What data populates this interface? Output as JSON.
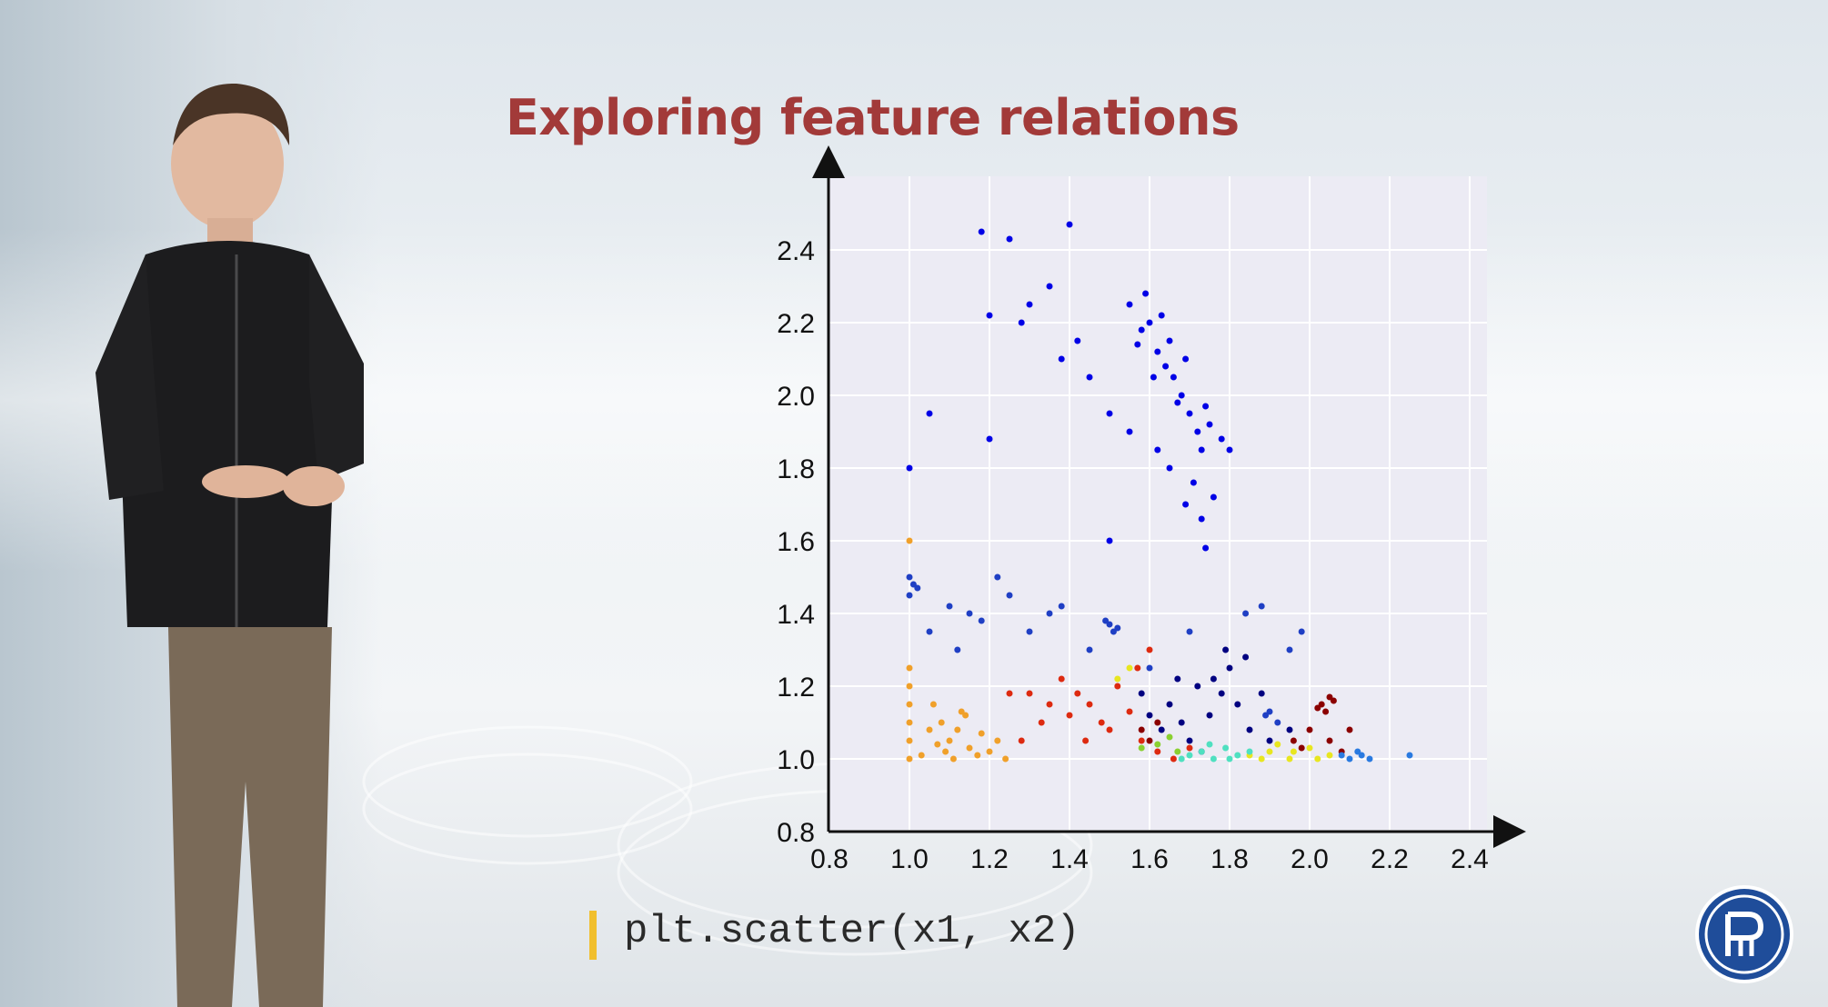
{
  "slide": {
    "title": "Exploring feature relations",
    "code": "plt.scatter(x1, x2)"
  },
  "colors": {
    "title": "#a23a39",
    "accent_bar": "#f1bf2d",
    "logo": "#1f4d9a"
  },
  "icons": {
    "logo": "university-logo-icon"
  },
  "chart_data": {
    "type": "scatter",
    "title": "",
    "xlabel": "",
    "ylabel": "",
    "xlim": [
      0.8,
      2.4
    ],
    "ylim": [
      0.8,
      2.5
    ],
    "x_ticks": [
      0.8,
      1.0,
      1.2,
      1.4,
      1.6,
      1.8,
      2.0,
      2.2,
      2.4
    ],
    "y_ticks": [
      0.8,
      1.0,
      1.2,
      1.4,
      1.6,
      1.8,
      2.0,
      2.2,
      2.4
    ],
    "x_tick_labels": [
      "0.8",
      "1.0",
      "1.2",
      "1.4",
      "1.6",
      "1.8",
      "2.0",
      "2.2",
      "2.4"
    ],
    "y_tick_labels": [
      "0.8",
      "1.0",
      "1.2",
      "1.4",
      "1.6",
      "1.8",
      "2.0",
      "2.2",
      "2.4"
    ],
    "grid": true,
    "series": [
      {
        "color": "#0000e6",
        "points": [
          [
            1.55,
            2.25
          ],
          [
            1.58,
            2.18
          ],
          [
            1.62,
            2.12
          ],
          [
            1.64,
            2.08
          ],
          [
            1.66,
            2.05
          ],
          [
            1.6,
            2.2
          ],
          [
            1.68,
            2.0
          ],
          [
            1.7,
            1.95
          ],
          [
            1.72,
            1.9
          ],
          [
            1.75,
            1.92
          ],
          [
            1.65,
            2.15
          ],
          [
            1.63,
            2.22
          ],
          [
            1.59,
            2.28
          ],
          [
            1.67,
            1.98
          ],
          [
            1.73,
            1.85
          ],
          [
            1.78,
            1.88
          ],
          [
            1.61,
            2.05
          ],
          [
            1.69,
            2.1
          ],
          [
            1.57,
            2.14
          ],
          [
            1.74,
            1.97
          ],
          [
            1.71,
            1.76
          ],
          [
            1.69,
            1.7
          ],
          [
            1.73,
            1.66
          ],
          [
            1.76,
            1.72
          ],
          [
            1.65,
            1.8
          ],
          [
            1.62,
            1.85
          ],
          [
            1.55,
            1.9
          ],
          [
            1.5,
            1.95
          ],
          [
            1.45,
            2.05
          ],
          [
            1.42,
            2.15
          ],
          [
            1.38,
            2.1
          ],
          [
            1.35,
            2.3
          ],
          [
            1.3,
            2.25
          ],
          [
            1.28,
            2.2
          ],
          [
            1.2,
            2.22
          ],
          [
            1.18,
            2.45
          ],
          [
            1.25,
            2.43
          ],
          [
            1.4,
            2.47
          ],
          [
            1.05,
            1.95
          ],
          [
            1.0,
            1.8
          ],
          [
            1.2,
            1.88
          ],
          [
            1.5,
            1.6
          ],
          [
            1.74,
            1.58
          ],
          [
            1.8,
            1.85
          ]
        ]
      },
      {
        "color": "#1f3fc4",
        "points": [
          [
            1.0,
            1.5
          ],
          [
            1.0,
            1.45
          ],
          [
            1.01,
            1.48
          ],
          [
            1.02,
            1.47
          ],
          [
            1.1,
            1.42
          ],
          [
            1.15,
            1.4
          ],
          [
            1.18,
            1.38
          ],
          [
            1.05,
            1.35
          ],
          [
            1.12,
            1.3
          ],
          [
            1.25,
            1.45
          ],
          [
            1.3,
            1.35
          ],
          [
            1.35,
            1.4
          ],
          [
            1.5,
            1.37
          ],
          [
            1.51,
            1.35
          ],
          [
            1.49,
            1.38
          ],
          [
            1.52,
            1.36
          ],
          [
            1.45,
            1.3
          ],
          [
            1.6,
            1.25
          ],
          [
            1.9,
            1.13
          ],
          [
            1.92,
            1.1
          ],
          [
            1.89,
            1.12
          ],
          [
            1.95,
            1.3
          ],
          [
            1.98,
            1.35
          ],
          [
            1.84,
            1.4
          ],
          [
            1.88,
            1.42
          ],
          [
            1.7,
            1.35
          ],
          [
            1.22,
            1.5
          ],
          [
            1.38,
            1.42
          ]
        ]
      },
      {
        "color": "#000080",
        "points": [
          [
            1.65,
            1.15
          ],
          [
            1.68,
            1.1
          ],
          [
            1.72,
            1.2
          ],
          [
            1.75,
            1.12
          ],
          [
            1.78,
            1.18
          ],
          [
            1.8,
            1.25
          ],
          [
            1.82,
            1.15
          ],
          [
            1.85,
            1.08
          ],
          [
            1.7,
            1.05
          ],
          [
            1.63,
            1.08
          ],
          [
            1.76,
            1.22
          ],
          [
            1.88,
            1.18
          ],
          [
            1.9,
            1.05
          ],
          [
            1.73,
            1.02
          ],
          [
            1.6,
            1.12
          ],
          [
            1.84,
            1.28
          ],
          [
            1.79,
            1.3
          ],
          [
            1.67,
            1.22
          ],
          [
            1.95,
            1.08
          ],
          [
            1.58,
            1.18
          ]
        ]
      },
      {
        "color": "#dd2a10",
        "points": [
          [
            1.3,
            1.18
          ],
          [
            1.35,
            1.15
          ],
          [
            1.4,
            1.12
          ],
          [
            1.45,
            1.15
          ],
          [
            1.48,
            1.1
          ],
          [
            1.5,
            1.08
          ],
          [
            1.52,
            1.2
          ],
          [
            1.55,
            1.13
          ],
          [
            1.42,
            1.18
          ],
          [
            1.38,
            1.22
          ],
          [
            1.33,
            1.1
          ],
          [
            1.25,
            1.18
          ],
          [
            1.28,
            1.05
          ],
          [
            1.58,
            1.05
          ],
          [
            1.62,
            1.02
          ],
          [
            1.66,
            1.0
          ],
          [
            1.7,
            1.03
          ],
          [
            1.57,
            1.25
          ],
          [
            1.6,
            1.3
          ],
          [
            1.44,
            1.05
          ]
        ]
      },
      {
        "color": "#8b0000",
        "points": [
          [
            2.03,
            1.15
          ],
          [
            2.05,
            1.17
          ],
          [
            2.04,
            1.13
          ],
          [
            2.06,
            1.16
          ],
          [
            2.02,
            1.14
          ],
          [
            2.0,
            1.08
          ],
          [
            2.05,
            1.05
          ],
          [
            2.08,
            1.02
          ],
          [
            1.96,
            1.05
          ],
          [
            2.1,
            1.08
          ],
          [
            1.98,
            1.03
          ],
          [
            1.6,
            1.05
          ],
          [
            1.62,
            1.1
          ],
          [
            1.58,
            1.08
          ]
        ]
      },
      {
        "color": "#f0a02a",
        "points": [
          [
            1.0,
            1.0
          ],
          [
            1.0,
            1.05
          ],
          [
            1.0,
            1.1
          ],
          [
            1.0,
            1.15
          ],
          [
            1.0,
            1.2
          ],
          [
            1.0,
            1.25
          ],
          [
            1.0,
            1.6
          ],
          [
            1.05,
            1.08
          ],
          [
            1.08,
            1.1
          ],
          [
            1.1,
            1.05
          ],
          [
            1.12,
            1.08
          ],
          [
            1.15,
            1.03
          ],
          [
            1.18,
            1.07
          ],
          [
            1.2,
            1.02
          ],
          [
            1.06,
            1.15
          ],
          [
            1.09,
            1.02
          ],
          [
            1.14,
            1.12
          ],
          [
            1.03,
            1.01
          ],
          [
            1.22,
            1.05
          ],
          [
            1.24,
            1.0
          ],
          [
            1.17,
            1.01
          ],
          [
            1.11,
            1.0
          ],
          [
            1.07,
            1.04
          ],
          [
            1.13,
            1.13
          ]
        ]
      },
      {
        "color": "#e8e620",
        "points": [
          [
            1.85,
            1.01
          ],
          [
            1.9,
            1.02
          ],
          [
            1.95,
            1.0
          ],
          [
            2.0,
            1.03
          ],
          [
            2.05,
            1.01
          ],
          [
            1.92,
            1.04
          ],
          [
            1.88,
            1.0
          ],
          [
            2.02,
            1.0
          ],
          [
            1.96,
            1.02
          ],
          [
            1.55,
            1.25
          ],
          [
            1.52,
            1.22
          ]
        ]
      },
      {
        "color": "#4fe0c0",
        "points": [
          [
            1.7,
            1.01
          ],
          [
            1.73,
            1.02
          ],
          [
            1.76,
            1.0
          ],
          [
            1.79,
            1.03
          ],
          [
            1.82,
            1.01
          ],
          [
            1.75,
            1.04
          ],
          [
            1.68,
            1.0
          ],
          [
            1.8,
            1.0
          ],
          [
            1.85,
            1.02
          ]
        ]
      },
      {
        "color": "#2a7ae0",
        "points": [
          [
            2.1,
            1.0
          ],
          [
            2.13,
            1.01
          ],
          [
            2.15,
            1.0
          ],
          [
            2.12,
            1.02
          ],
          [
            2.25,
            1.01
          ],
          [
            2.08,
            1.01
          ]
        ]
      },
      {
        "color": "#8ad030",
        "points": [
          [
            1.62,
            1.04
          ],
          [
            1.65,
            1.06
          ],
          [
            1.58,
            1.03
          ],
          [
            1.67,
            1.02
          ]
        ]
      }
    ]
  }
}
